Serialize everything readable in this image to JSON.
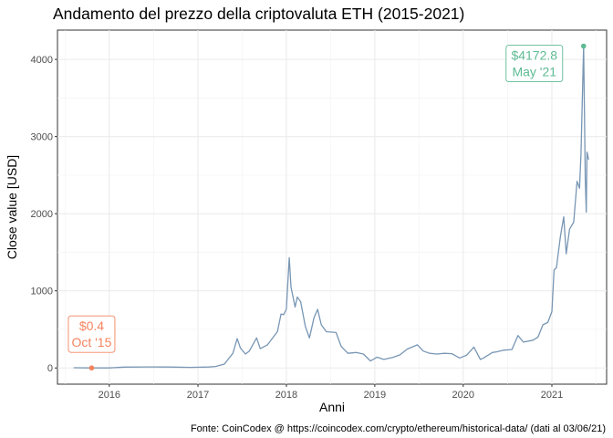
{
  "chart_data": {
    "type": "line",
    "title": "Andamento del prezzo della criptovaluta ETH (2015-2021)",
    "xlabel": "Anni",
    "ylabel": "Close value [USD]",
    "caption": "Fonte: CoinCodex @ https://coincodex.com/crypto/ethereum/historical-data/ (dati al 03/06/21)",
    "x_ticks": [
      "2016",
      "2017",
      "2018",
      "2019",
      "2020",
      "2021"
    ],
    "y_ticks": [
      "0",
      "1000",
      "2000",
      "3000",
      "4000"
    ],
    "xlim": [
      "2015-06-01",
      "2021-08-15"
    ],
    "ylim": [
      -210,
      4380
    ],
    "grid": true,
    "colors": {
      "line": "#7896B4",
      "min": "#F4845F",
      "max": "#5DBB93"
    },
    "series": [
      {
        "x": [
          "2015-08-07",
          "2015-10-20",
          "2016-01-01",
          "2016-03-01",
          "2016-06-15",
          "2016-09-01",
          "2016-12-01",
          "2017-02-15",
          "2017-03-15",
          "2017-04-20",
          "2017-05-25",
          "2017-06-12",
          "2017-06-25",
          "2017-07-16",
          "2017-08-01",
          "2017-08-31",
          "2017-09-15",
          "2017-10-15",
          "2017-11-25",
          "2017-12-10",
          "2017-12-20",
          "2018-01-01",
          "2018-01-13",
          "2018-01-20",
          "2018-02-06",
          "2018-02-15",
          "2018-03-01",
          "2018-03-20",
          "2018-04-06",
          "2018-04-25",
          "2018-05-10",
          "2018-05-25",
          "2018-06-15",
          "2018-07-25",
          "2018-08-15",
          "2018-09-12",
          "2018-10-15",
          "2018-11-15",
          "2018-12-14",
          "2019-01-10",
          "2019-02-07",
          "2019-03-15",
          "2019-04-15",
          "2019-05-15",
          "2019-06-26",
          "2019-07-20",
          "2019-08-15",
          "2019-09-15",
          "2019-10-15",
          "2019-11-15",
          "2019-12-17",
          "2020-01-15",
          "2020-02-14",
          "2020-03-12",
          "2020-03-25",
          "2020-04-30",
          "2020-05-20",
          "2020-06-15",
          "2020-07-20",
          "2020-08-14",
          "2020-09-05",
          "2020-10-15",
          "2020-11-05",
          "2020-11-25",
          "2020-12-15",
          "2021-01-01",
          "2021-01-10",
          "2021-01-20",
          "2021-02-05",
          "2021-02-19",
          "2021-03-01",
          "2021-03-15",
          "2021-04-01",
          "2021-04-15",
          "2021-04-25",
          "2021-05-01",
          "2021-05-12",
          "2021-05-19",
          "2021-05-23",
          "2021-05-26",
          "2021-06-02"
        ],
        "y": [
          2.8,
          0.4,
          0.9,
          11,
          14,
          12,
          8,
          12,
          20,
          50,
          190,
          380,
          260,
          180,
          220,
          390,
          250,
          300,
          470,
          700,
          690,
          760,
          1430,
          1050,
          790,
          920,
          860,
          540,
          390,
          650,
          760,
          560,
          470,
          460,
          280,
          190,
          200,
          180,
          90,
          140,
          110,
          135,
          170,
          245,
          300,
          220,
          190,
          180,
          190,
          185,
          130,
          165,
          270,
          110,
          130,
          200,
          210,
          230,
          240,
          420,
          335,
          360,
          400,
          560,
          590,
          730,
          1270,
          1300,
          1700,
          1960,
          1480,
          1800,
          1890,
          2420,
          2330,
          2770,
          4172.8,
          2450,
          2020,
          2800,
          2700
        ]
      }
    ],
    "annotations": [
      {
        "kind": "min",
        "value": "$0.4",
        "date": "Oct '15",
        "x": "2015-10-20",
        "y": 0.4
      },
      {
        "kind": "max",
        "value": "$4172.8",
        "date": "May '21",
        "x": "2021-05-12",
        "y": 4172.8
      }
    ]
  }
}
